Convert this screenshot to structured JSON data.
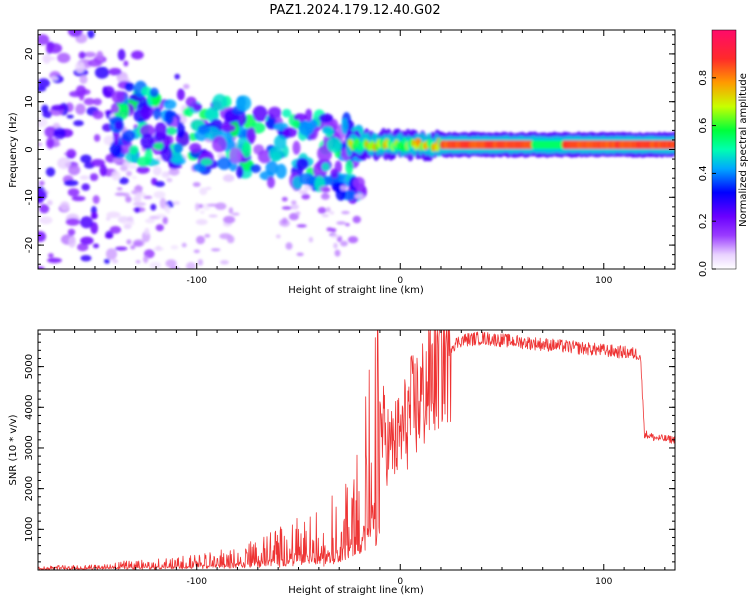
{
  "figure": {
    "title": "PAZ1.2024.179.12.40.G02"
  },
  "colorbar": {
    "label": "Normalized spectral amplitude",
    "ticks": [
      0.0,
      0.2,
      0.4,
      0.6,
      0.8
    ],
    "tick_labels": [
      "0.0",
      "0.2",
      "0.4",
      "0.6",
      "0.8"
    ],
    "range": [
      0,
      1
    ],
    "colormap": [
      "#ffffff",
      "#e9d2ff",
      "#9a3cff",
      "#6a00ff",
      "#0000ff",
      "#00e5ff",
      "#00ff3a",
      "#c8ff00",
      "#ff9a00",
      "#ff2a2a",
      "#ff0a6a"
    ]
  },
  "chart_data": [
    {
      "type": "heatmap",
      "title": "",
      "xlabel": "Height of straight line (km)",
      "ylabel": "Frequency (Hz)",
      "xlim": [
        -178,
        135
      ],
      "ylim": [
        -25,
        25
      ],
      "xticks": [
        -100,
        0,
        100
      ],
      "xtick_labels": [
        "-100",
        "0",
        "100"
      ],
      "yticks": [
        -20,
        -10,
        0,
        10,
        20
      ],
      "ytick_labels": [
        "-20",
        "-10",
        "0",
        "10",
        "20"
      ],
      "ridge": {
        "x_range": [
          -25,
          135
        ],
        "frequency": 1,
        "amplitude": 0.85
      },
      "scatter_region": {
        "x_range": [
          -140,
          -20
        ],
        "frequency_range": [
          -5,
          12
        ],
        "amplitude": 0.45
      },
      "noise_region": {
        "x_range": [
          -178,
          -135
        ],
        "frequency_range": [
          -25,
          25
        ],
        "amplitude": 0.25
      }
    },
    {
      "type": "line",
      "title": "",
      "xlabel": "Height of straight line (km)",
      "ylabel": "SNR (10 * v/v)",
      "xlim": [
        -178,
        135
      ],
      "ylim": [
        0,
        5900
      ],
      "xticks": [
        -100,
        0,
        100
      ],
      "xtick_labels": [
        "-100",
        "0",
        "100"
      ],
      "yticks": [
        1000,
        2000,
        3000,
        4000,
        5000
      ],
      "ytick_labels": [
        "1000",
        "2000",
        "3000",
        "4000",
        "5000"
      ],
      "color": "#ee3333",
      "series": [
        {
          "x": [
            -178,
            -160,
            -140,
            -120,
            -100,
            -80,
            -70,
            -60,
            -50,
            -40,
            -35,
            -30,
            -25,
            -20,
            -15,
            -10,
            -5,
            0,
            5,
            10,
            15,
            20,
            25,
            30,
            40,
            50,
            60,
            70,
            80,
            90,
            100,
            110,
            118,
            120,
            125,
            135
          ],
          "values": [
            70,
            80,
            110,
            150,
            200,
            300,
            420,
            550,
            700,
            800,
            900,
            1200,
            1400,
            1800,
            2800,
            3600,
            3000,
            3300,
            3900,
            4200,
            4700,
            5300,
            5500,
            5650,
            5700,
            5650,
            5600,
            5550,
            5500,
            5450,
            5400,
            5350,
            5300,
            3350,
            3250,
            3200
          ]
        }
      ]
    }
  ]
}
